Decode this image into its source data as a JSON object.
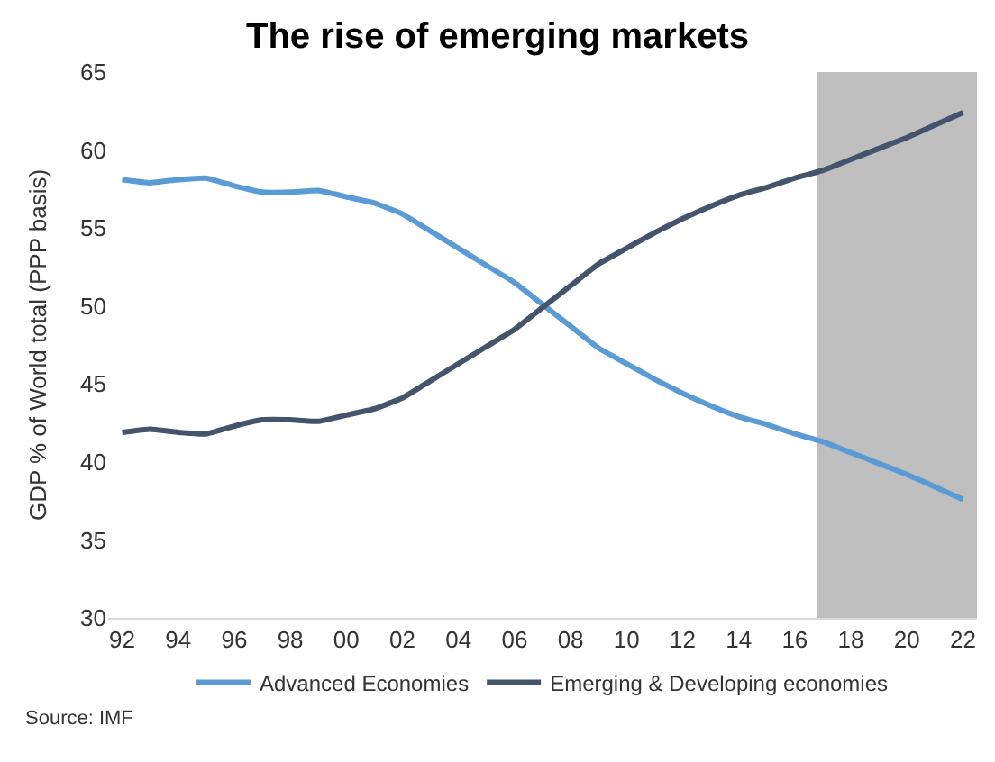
{
  "chart_data": {
    "type": "line",
    "title": "The rise of emerging markets",
    "ylabel": "GDP % of World total (PPP basis)",
    "x": [
      1992,
      1993,
      1994,
      1995,
      1996,
      1997,
      1998,
      1999,
      2000,
      2001,
      2002,
      2003,
      2004,
      2005,
      2006,
      2007,
      2008,
      2009,
      2010,
      2011,
      2012,
      2013,
      2014,
      2015,
      2016,
      2017,
      2018,
      2019,
      2020,
      2021,
      2022
    ],
    "series": [
      {
        "name": "Advanced Economies",
        "color": "#5b9bd5",
        "values": [
          58.1,
          57.9,
          58.1,
          58.2,
          57.7,
          57.3,
          57.3,
          57.4,
          57.0,
          56.6,
          55.9,
          54.8,
          53.7,
          52.6,
          51.5,
          50.1,
          48.7,
          47.3,
          46.3,
          45.3,
          44.4,
          43.6,
          42.9,
          42.4,
          41.8,
          41.3,
          40.6,
          39.9,
          39.2,
          38.4,
          37.6
        ]
      },
      {
        "name": "Emerging & Developing economies",
        "color": "#44546a",
        "values": [
          41.9,
          42.1,
          41.9,
          41.8,
          42.3,
          42.7,
          42.7,
          42.6,
          43.0,
          43.4,
          44.1,
          45.2,
          46.3,
          47.4,
          48.5,
          49.9,
          51.3,
          52.7,
          53.7,
          54.7,
          55.6,
          56.4,
          57.1,
          57.6,
          58.2,
          58.7,
          59.4,
          60.1,
          60.8,
          61.6,
          62.4
        ]
      }
    ],
    "xlim": [
      1991.5,
      2022.5
    ],
    "xticks": [
      {
        "value": 1992,
        "label": "92"
      },
      {
        "value": 1994,
        "label": "94"
      },
      {
        "value": 1996,
        "label": "96"
      },
      {
        "value": 1998,
        "label": "98"
      },
      {
        "value": 2000,
        "label": "00"
      },
      {
        "value": 2002,
        "label": "02"
      },
      {
        "value": 2004,
        "label": "04"
      },
      {
        "value": 2006,
        "label": "06"
      },
      {
        "value": 2008,
        "label": "08"
      },
      {
        "value": 2010,
        "label": "10"
      },
      {
        "value": 2012,
        "label": "12"
      },
      {
        "value": 2014,
        "label": "14"
      },
      {
        "value": 2016,
        "label": "16"
      },
      {
        "value": 2018,
        "label": "18"
      },
      {
        "value": 2020,
        "label": "20"
      },
      {
        "value": 2022,
        "label": "22"
      }
    ],
    "ylim": [
      30,
      65
    ],
    "yticks": [
      30,
      35,
      40,
      45,
      50,
      55,
      60,
      65
    ],
    "bands": [
      {
        "axis": "x",
        "from": 2016.8,
        "to": 2022.5,
        "color": "#bfbfbf"
      }
    ],
    "grid": false,
    "legend": "bottom",
    "marker": "none",
    "line_style": "solid",
    "annotations": [
      "Source: IMF"
    ]
  }
}
